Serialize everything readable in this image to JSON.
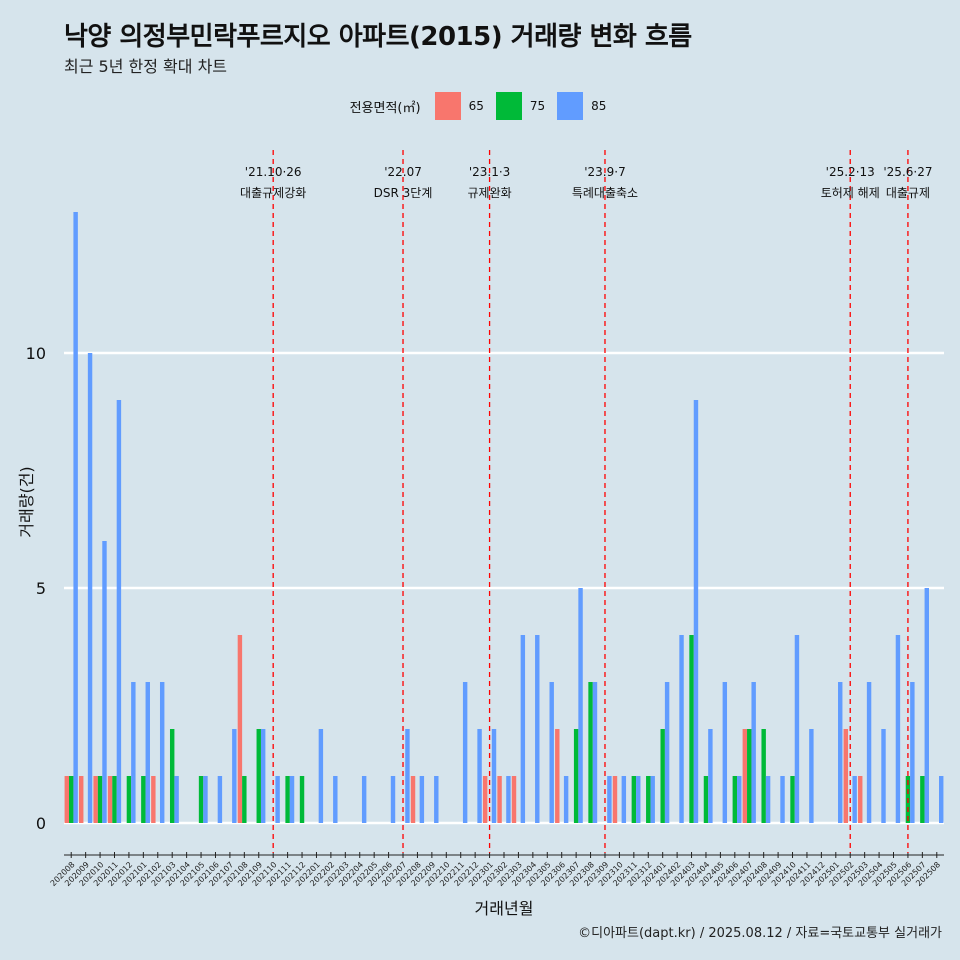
{
  "chart_data": {
    "type": "bar",
    "title": "낙양 의정부민락푸르지오 아파트(2015) 거래량 변화 흐름",
    "subtitle": "최근 5년 한정 확대 차트",
    "xlabel": "거래년월",
    "ylabel": "거래량(건)",
    "ylim": [
      0,
      13.5
    ],
    "y_ticks": [
      0,
      5,
      10
    ],
    "grid": true,
    "legend": {
      "title": "전용면적(㎡)",
      "position": "top"
    },
    "categories": [
      "202008",
      "202009",
      "202010",
      "202011",
      "202012",
      "202101",
      "202102",
      "202103",
      "202104",
      "202105",
      "202106",
      "202107",
      "202108",
      "202109",
      "202110",
      "202111",
      "202112",
      "202201",
      "202202",
      "202203",
      "202204",
      "202205",
      "202206",
      "202207",
      "202208",
      "202209",
      "202210",
      "202211",
      "202212",
      "202301",
      "202302",
      "202303",
      "202304",
      "202305",
      "202306",
      "202307",
      "202308",
      "202309",
      "202310",
      "202311",
      "202312",
      "202401",
      "202402",
      "202403",
      "202404",
      "202405",
      "202406",
      "202407",
      "202408",
      "202409",
      "202410",
      "202411",
      "202412",
      "202501",
      "202502",
      "202503",
      "202504",
      "202505",
      "202506",
      "202507",
      "202508"
    ],
    "series": [
      {
        "name": "65",
        "color": "#f8766d",
        "values": [
          1,
          1,
          1,
          1,
          0,
          0,
          1,
          0,
          0,
          0,
          0,
          0,
          4,
          0,
          0,
          0,
          0,
          0,
          0,
          0,
          0,
          0,
          0,
          0,
          1,
          0,
          0,
          0,
          0,
          1,
          1,
          1,
          0,
          0,
          2,
          0,
          0,
          0,
          1,
          0,
          0,
          0,
          0,
          0,
          0,
          0,
          0,
          2,
          0,
          0,
          0,
          0,
          0,
          0,
          2,
          1,
          0,
          0,
          0,
          0,
          0
        ]
      },
      {
        "name": "75",
        "color": "#00ba38",
        "values": [
          1,
          0,
          1,
          1,
          1,
          1,
          0,
          2,
          0,
          1,
          0,
          0,
          1,
          2,
          0,
          1,
          1,
          0,
          0,
          0,
          0,
          0,
          0,
          0,
          0,
          0,
          0,
          0,
          0,
          0,
          0,
          0,
          0,
          0,
          0,
          2,
          3,
          0,
          0,
          1,
          1,
          2,
          0,
          4,
          1,
          0,
          1,
          2,
          2,
          0,
          1,
          0,
          0,
          0,
          0,
          0,
          0,
          0,
          1,
          1,
          0
        ]
      },
      {
        "name": "85",
        "color": "#619cff",
        "values": [
          13,
          10,
          6,
          9,
          3,
          3,
          3,
          1,
          0,
          1,
          1,
          2,
          0,
          2,
          1,
          1,
          0,
          2,
          1,
          0,
          1,
          0,
          1,
          2,
          1,
          1,
          0,
          3,
          2,
          2,
          1,
          4,
          4,
          3,
          1,
          5,
          3,
          1,
          1,
          1,
          1,
          3,
          4,
          9,
          2,
          3,
          1,
          3,
          1,
          1,
          4,
          2,
          0,
          3,
          1,
          3,
          2,
          4,
          3,
          5,
          1
        ]
      }
    ],
    "annotations": [
      {
        "category": "202110",
        "date": "'21.10·26",
        "label": "대출규제강화"
      },
      {
        "category": "202207",
        "date": "'22.07",
        "label": "DSR 3단계"
      },
      {
        "category": "202301",
        "date": "'23.1·3",
        "label": "규제완화"
      },
      {
        "category": "202309",
        "date": "'23.9·7",
        "label": "특례대출축소"
      },
      {
        "category": "202502",
        "date": "'25.2·13",
        "label": "토허제 해제"
      },
      {
        "category": "202506",
        "date": "'25.6·27",
        "label": "대출규제"
      }
    ]
  },
  "caption": "©디아파트(dapt.kr) / 2025.08.12 / 자료=국토교통부 실거래가"
}
